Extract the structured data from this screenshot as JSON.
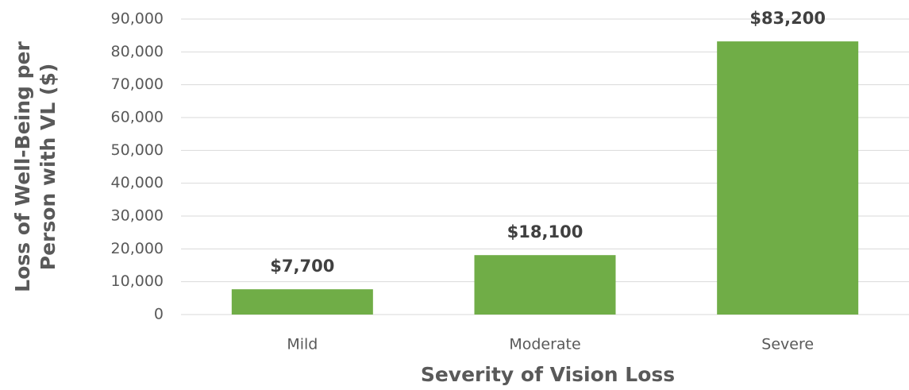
{
  "chart_data": {
    "type": "bar",
    "xlabel": "Severity of Vision Loss",
    "ylabel": [
      "Loss of Well-Being per",
      "Person with VL ($)"
    ],
    "categories": [
      "Mild",
      "Moderate",
      "Severe"
    ],
    "values": [
      7700,
      18100,
      83200
    ],
    "value_labels": [
      "$7,700",
      "$18,100",
      "$83,200"
    ],
    "color": "#70ad47",
    "ylim": [
      0,
      90000
    ],
    "yticks": [
      0,
      {
        "value": 10000,
        "label": "10,000"
      },
      {
        "value": 20000,
        "label": "20,000"
      },
      {
        "value": 30000,
        "label": "30,000"
      },
      {
        "value": 40000,
        "label": "40,000"
      },
      {
        "value": 50000,
        "label": "50,000"
      },
      {
        "value": 60000,
        "label": "60,000"
      },
      {
        "value": 70000,
        "label": "70,000"
      },
      {
        "value": 80000,
        "label": "80,000"
      },
      {
        "value": 90000,
        "label": "90,000"
      }
    ],
    "grid": true
  }
}
